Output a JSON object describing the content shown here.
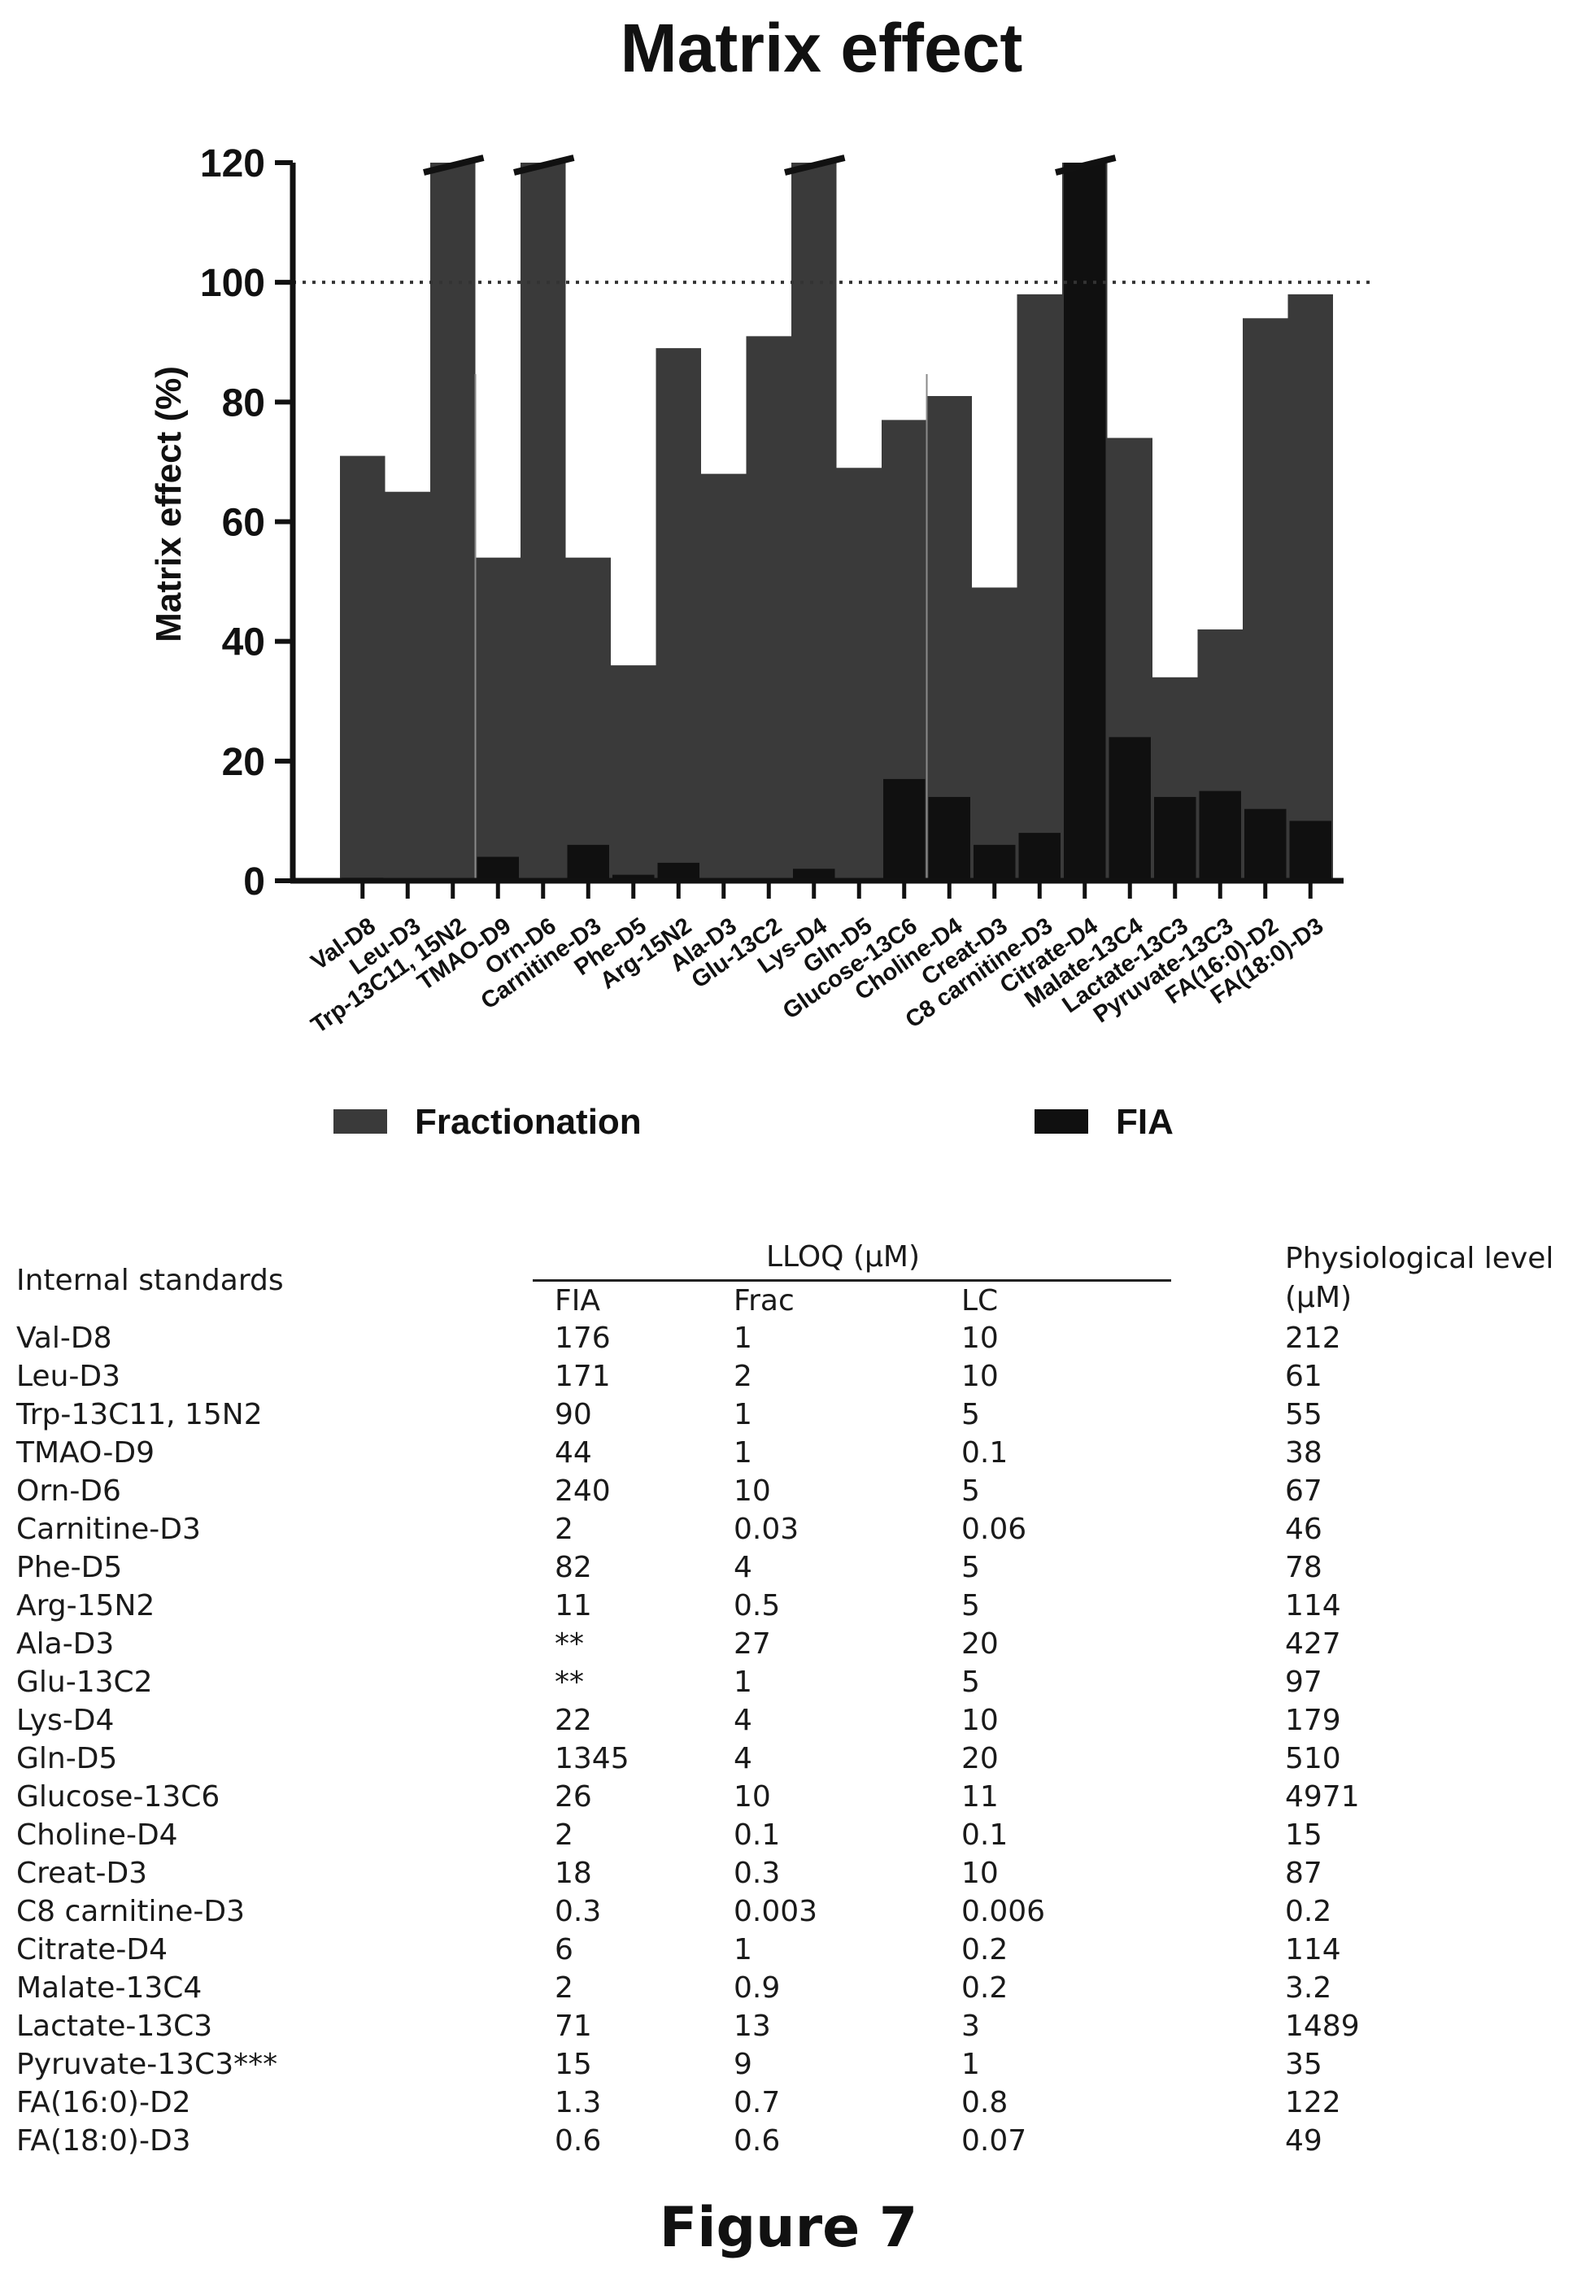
{
  "chart_data": {
    "type": "bar",
    "title": "Matrix effect",
    "ylabel": "Matrix effect (%)",
    "ylim": [
      0,
      120
    ],
    "yticks": [
      0,
      20,
      40,
      60,
      80,
      100,
      120
    ],
    "reference_line": 100,
    "categories": [
      "Val-D8",
      "Leu-D3",
      "Trp-13C11, 15N2",
      "TMAO-D9",
      "Orn-D6",
      "Carnitine-D3",
      "Phe-D5",
      "Arg-15N2",
      "Ala-D3",
      "Glu-13C2",
      "Lys-D4",
      "Gln-D5",
      "Glucose-13C6",
      "Choline-D4",
      "Creat-D3",
      "C8 carnitine-D3",
      "Citrate-D4",
      "Malate-13C4",
      "Lactate-13C3",
      "Pyruvate-13C3",
      "FA(16:0)-D2",
      "FA(18:0)-D3"
    ],
    "series": [
      {
        "name": "Fractionation",
        "color": "#3a3a3a",
        "values": [
          71,
          65,
          120,
          54,
          120,
          54,
          36,
          89,
          68,
          91,
          120,
          69,
          77,
          81,
          49,
          98,
          120,
          74,
          34,
          42,
          94,
          98
        ]
      },
      {
        "name": "FIA",
        "color": "#101010",
        "values": [
          0.5,
          0.3,
          0.3,
          4,
          0.3,
          6,
          1,
          3,
          0.3,
          0.3,
          2,
          0.3,
          17,
          14,
          6,
          8,
          120,
          24,
          14,
          15,
          12,
          10
        ]
      }
    ],
    "broken_bars": [
      2,
      4,
      10,
      16
    ]
  },
  "table": {
    "title_col": "Internal standards",
    "group_header": "LLOQ (μM)",
    "sub_headers": [
      "FIA",
      "Frac",
      "LC"
    ],
    "phys_header_1": "Physiological level",
    "phys_header_2": "(μM)",
    "rows": [
      [
        "Val-D8",
        "176",
        "1",
        "10",
        "212"
      ],
      [
        "Leu-D3",
        "171",
        "2",
        "10",
        "61"
      ],
      [
        "Trp-13C11, 15N2",
        "90",
        "1",
        "5",
        "55"
      ],
      [
        "TMAO-D9",
        "44",
        "1",
        "0.1",
        "38"
      ],
      [
        "Orn-D6",
        "240",
        "10",
        "5",
        "67"
      ],
      [
        "Carnitine-D3",
        "2",
        "0.03",
        "0.06",
        "46"
      ],
      [
        "Phe-D5",
        "82",
        "4",
        "5",
        "78"
      ],
      [
        "Arg-15N2",
        "11",
        "0.5",
        "5",
        "114"
      ],
      [
        "Ala-D3",
        "**",
        "27",
        "20",
        "427"
      ],
      [
        "Glu-13C2",
        "**",
        "1",
        "5",
        "97"
      ],
      [
        "Lys-D4",
        "22",
        "4",
        "10",
        "179"
      ],
      [
        "Gln-D5",
        "1345",
        "4",
        "20",
        "510"
      ],
      [
        "Glucose-13C6",
        "26",
        "10",
        "11",
        "4971"
      ],
      [
        "Choline-D4",
        "2",
        "0.1",
        "0.1",
        "15"
      ],
      [
        "Creat-D3",
        "18",
        "0.3",
        "10",
        "87"
      ],
      [
        "C8 carnitine-D3",
        "0.3",
        "0.003",
        "0.006",
        "0.2"
      ],
      [
        "Citrate-D4",
        "6",
        "1",
        "0.2",
        "114"
      ],
      [
        "Malate-13C4",
        "2",
        "0.9",
        "0.2",
        "3.2"
      ],
      [
        "Lactate-13C3",
        "71",
        "13",
        "3",
        "1489"
      ],
      [
        "Pyruvate-13C3***",
        "15",
        "9",
        "1",
        "35"
      ],
      [
        "FA(16:0)-D2",
        "1.3",
        "0.7",
        "0.8",
        "122"
      ],
      [
        "FA(18:0)-D3",
        "0.6",
        "0.6",
        "0.07",
        "49"
      ]
    ]
  },
  "caption": "Figure 7"
}
